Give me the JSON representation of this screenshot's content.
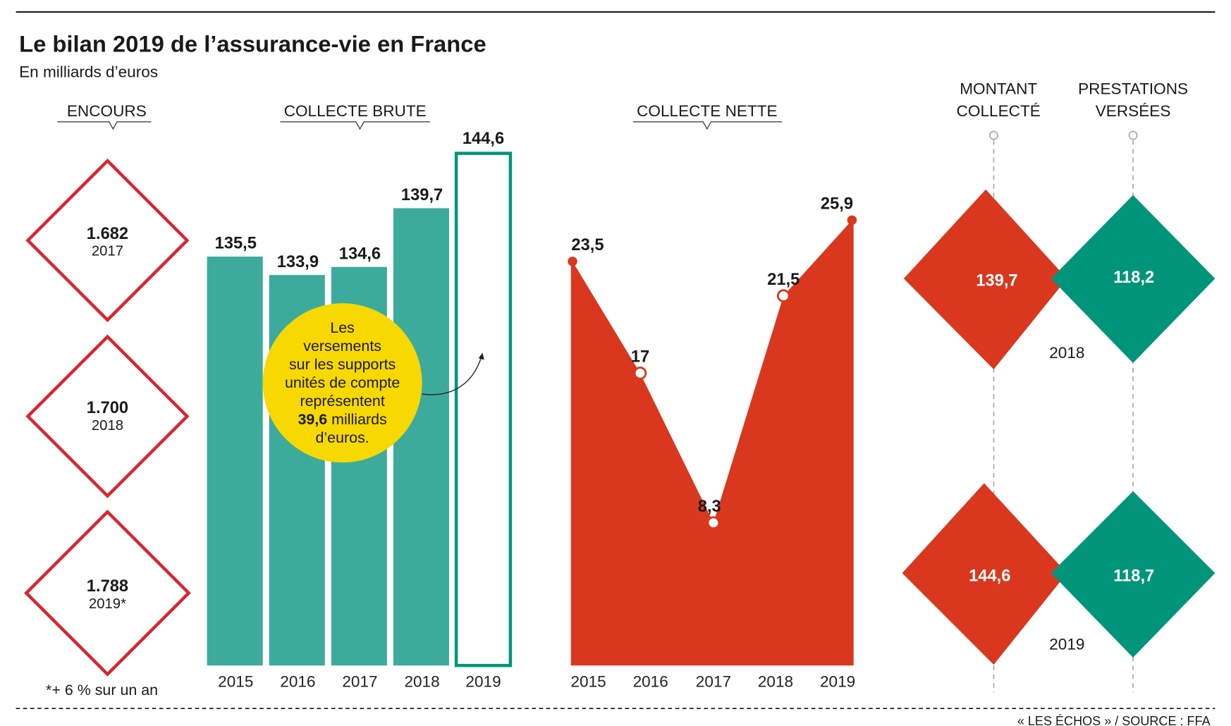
{
  "title": "Le bilan 2019 de l’assurance-vie en France",
  "subtitle": "En milliards d’euros",
  "colors": {
    "red": "#d9381e",
    "teal": "#3dab9c",
    "green": "#00957a",
    "yellow": "#f7d800",
    "outline_red": "#d7262e"
  },
  "chart_data": [
    {
      "type": "table",
      "title": "ENCOURS",
      "items": [
        {
          "value": "1.682",
          "year": "2017"
        },
        {
          "value": "1.700",
          "year": "2018"
        },
        {
          "value": "1.788",
          "year": "2019*"
        }
      ],
      "footnote": "*+ 6 % sur un an"
    },
    {
      "type": "bar",
      "title": "COLLECTE BRUTE",
      "categories": [
        "2015",
        "2016",
        "2017",
        "2018",
        "2019"
      ],
      "values": [
        135.5,
        133.9,
        134.6,
        139.7,
        144.6
      ],
      "labels": [
        "135,5",
        "133,9",
        "134,6",
        "139,7",
        "144,6"
      ],
      "ylim": [
        100,
        150
      ],
      "annotation": {
        "lines": [
          "Les",
          "versements",
          "sur les supports",
          "unités de compte",
          "représentent"
        ],
        "bold": "39,6",
        "rest": " milliards",
        "last": "d’euros."
      }
    },
    {
      "type": "area",
      "title": "COLLECTE NETTE",
      "categories": [
        "2015",
        "2016",
        "2017",
        "2018",
        "2019"
      ],
      "values": [
        23.5,
        17,
        8.3,
        21.5,
        25.9
      ],
      "labels": [
        "23,5",
        "17",
        "8,3",
        "21,5",
        "25,9"
      ],
      "ylim": [
        0,
        30
      ]
    },
    {
      "type": "table",
      "columns": [
        [
          "MONTANT",
          "COLLECTÉ"
        ],
        [
          "PRESTATIONS",
          "VERSÉES"
        ]
      ],
      "rows": [
        {
          "year": "2018",
          "montant": "139,7",
          "prestations": "118,2"
        },
        {
          "year": "2019",
          "montant": "144,6",
          "prestations": "118,7"
        }
      ]
    }
  ],
  "source": "« LES ÉCHOS » / SOURCE : FFA"
}
